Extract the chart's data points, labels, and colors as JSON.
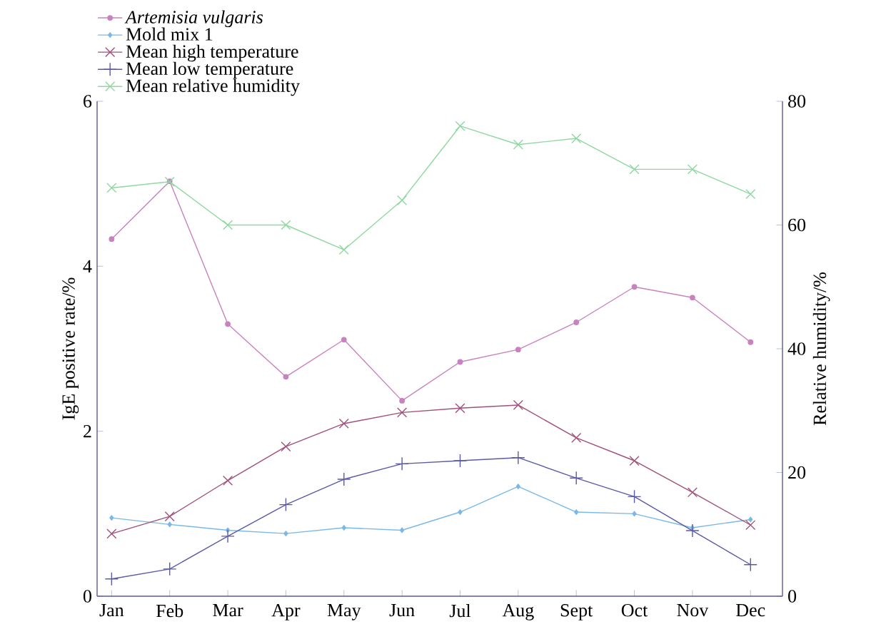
{
  "chart_data": {
    "type": "line",
    "ylabel": "IgE positive rate/%",
    "y2label": "Relative humidity/%",
    "categories": [
      "Jan",
      "Feb",
      "Mar",
      "Apr",
      "May",
      "Jun",
      "Jul",
      "Aug",
      "Sept",
      "Oct",
      "Nov",
      "Dec"
    ],
    "ylim": [
      0,
      6
    ],
    "yticks": [
      0,
      2,
      4,
      6
    ],
    "y2lim": [
      0,
      80
    ],
    "y2ticks": [
      0,
      20,
      40,
      60,
      80
    ],
    "legend": "top left",
    "grid": false,
    "series": [
      {
        "name": "*Artemisia vulgaris*",
        "color": "#c882c0",
        "marker": "circle",
        "values": [
          4.33,
          5.03,
          3.3,
          2.66,
          3.11,
          2.37,
          2.84,
          2.99,
          3.32,
          3.75,
          3.62,
          3.08
        ]
      },
      {
        "name": "Mold mix 1",
        "color": "#7ab8e8",
        "marker": "diamond",
        "values": [
          0.95,
          0.87,
          0.8,
          0.76,
          0.83,
          0.8,
          1.02,
          1.33,
          1.02,
          1.0,
          0.83,
          0.93
        ]
      },
      {
        "name": "Mean high temperature",
        "color": "#a0507a",
        "marker": "cross",
        "axis": "y2",
        "values": [
          10.1,
          12.9,
          18.7,
          24.2,
          27.9,
          29.7,
          30.4,
          30.9,
          25.6,
          21.9,
          16.8,
          11.5
        ]
      },
      {
        "name": "Mean low temperature",
        "color": "#5a5aa8",
        "marker": "plus",
        "axis": "y2",
        "values": [
          2.8,
          4.4,
          9.7,
          14.8,
          18.9,
          21.4,
          21.9,
          22.4,
          19.1,
          16.1,
          10.6,
          5.1
        ]
      },
      {
        "name": "Mean relative humidity",
        "color": "#8fd8a0",
        "marker": "cross",
        "axis": "y2",
        "values": [
          66,
          67,
          60,
          60,
          56,
          64,
          76,
          73,
          74,
          69,
          69,
          65
        ]
      }
    ]
  }
}
